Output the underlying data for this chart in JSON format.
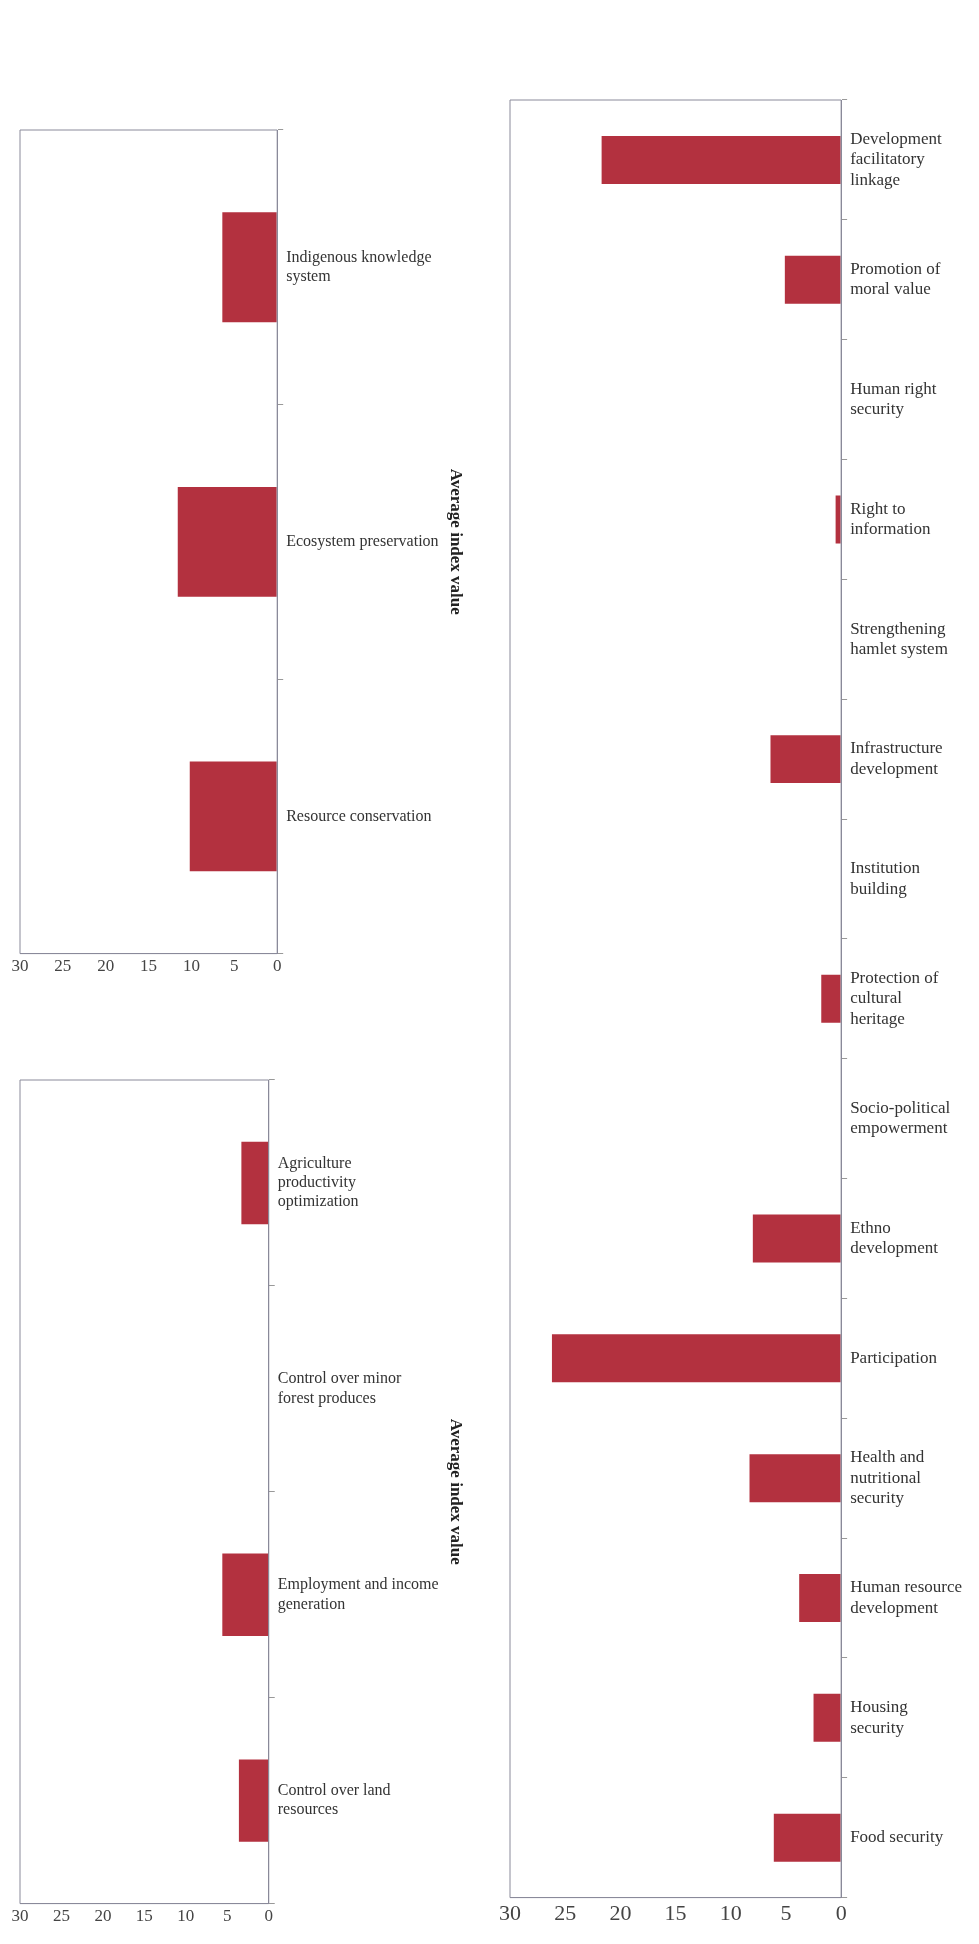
{
  "chart_data": [
    {
      "type": "bar",
      "orientation": "horizontal",
      "ylabel": "Average index value",
      "categories": [
        "Indigenous knowledge system",
        "Ecosystem preservation",
        "Resource conservation"
      ],
      "values": [
        6.4,
        11.6,
        10.2
      ],
      "color": "#b3313f",
      "xlim": [
        30,
        0
      ],
      "xticks": [
        30,
        25,
        20,
        15,
        10,
        5,
        0
      ],
      "grid": false,
      "legend": false
    },
    {
      "type": "bar",
      "orientation": "horizontal",
      "ylabel": "Average index value",
      "categories": [
        "Agriculture productivity optimization",
        "Control over minor forest produces",
        "Employment and income generation",
        "Control over land resources"
      ],
      "values": [
        3.3,
        0,
        5.6,
        3.6
      ],
      "color": "#b3313f",
      "xlim": [
        30,
        0
      ],
      "xticks": [
        30,
        25,
        20,
        15,
        10,
        5,
        0
      ],
      "grid": false,
      "legend": false
    },
    {
      "type": "bar",
      "orientation": "horizontal",
      "categories": [
        "Development facilitatory linkage",
        "Promotion of moral value",
        "Human right security",
        "Right to information",
        "Strengthening hamlet system",
        "Infrastructure development",
        "Institution building",
        "Protection of cultural heritage",
        "Socio-political empowerment",
        "Ethno development",
        "Participation",
        "Health and nutritional security",
        "Human resource development",
        "Housing security",
        "Food security"
      ],
      "values": [
        21.7,
        5.1,
        0,
        0.5,
        0,
        6.4,
        0,
        1.8,
        0,
        8.0,
        26.2,
        8.3,
        3.8,
        2.5,
        6.1
      ],
      "color": "#b3313f",
      "xlim": [
        30,
        0
      ],
      "xticks": [
        30,
        25,
        20,
        15,
        10,
        5,
        0
      ],
      "grid": false,
      "legend": false
    }
  ]
}
